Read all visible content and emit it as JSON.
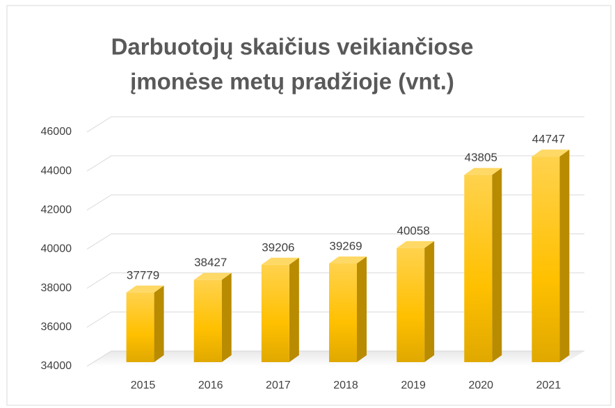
{
  "chart_data": {
    "type": "bar3d",
    "title": [
      "Darbuotojų skaičius veikiančiose",
      "įmonėse metų pradžioje (vnt.)"
    ],
    "categories": [
      "2015",
      "2016",
      "2017",
      "2018",
      "2019",
      "2020",
      "2021"
    ],
    "values": [
      37779,
      38427,
      39206,
      39269,
      40058,
      43805,
      44747
    ],
    "color": "#ffc000",
    "ylim": [
      34000,
      46000
    ],
    "yticks": [
      34000,
      36000,
      38000,
      40000,
      42000,
      44000,
      46000
    ],
    "grid": true
  }
}
